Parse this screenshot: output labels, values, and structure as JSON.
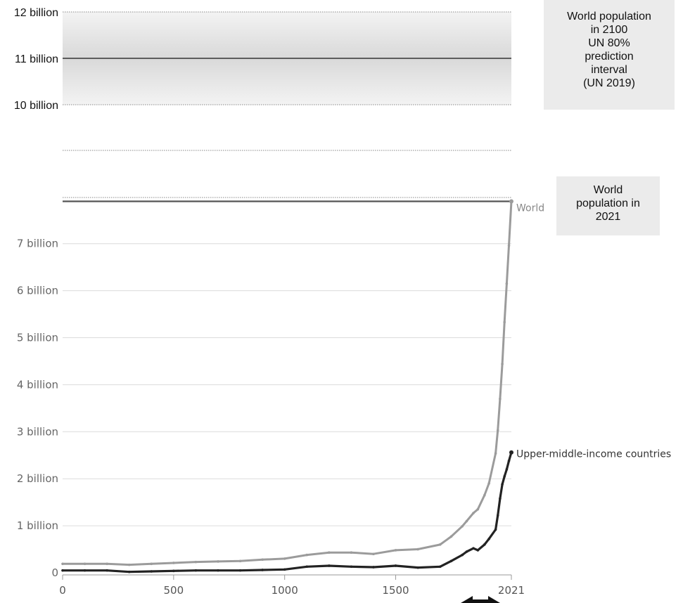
{
  "chart_data": {
    "type": "line",
    "x_ticks": [
      "0",
      "500",
      "1000",
      "1500",
      "2021"
    ],
    "x_tick_values": [
      0,
      500,
      1000,
      1500,
      2021
    ],
    "xlim": [
      0,
      2021
    ],
    "y_ticks_lower": [
      "0",
      "1 billion",
      "2 billion",
      "3 billion",
      "4 billion",
      "5 billion",
      "6 billion",
      "7 billion"
    ],
    "y_tick_values_lower": [
      0,
      1,
      2,
      3,
      4,
      5,
      6,
      7
    ],
    "y_ticks_upper": [
      "10 billion",
      "11 billion",
      "12 billion"
    ],
    "y_tick_values_upper": [
      10,
      11,
      12
    ],
    "y_unit": "billion",
    "grid": true,
    "series": [
      {
        "name": "World",
        "color": "#9b9b9b",
        "x": [
          0,
          100,
          200,
          300,
          400,
          500,
          600,
          700,
          800,
          900,
          1000,
          1100,
          1200,
          1300,
          1400,
          1500,
          1600,
          1700,
          1750,
          1800,
          1820,
          1850,
          1870,
          1900,
          1920,
          1950,
          1960,
          1970,
          1980,
          1990,
          2000,
          2010,
          2021
        ],
        "values": [
          0.19,
          0.19,
          0.19,
          0.17,
          0.19,
          0.21,
          0.23,
          0.24,
          0.25,
          0.28,
          0.3,
          0.38,
          0.43,
          0.43,
          0.4,
          0.48,
          0.5,
          0.6,
          0.77,
          0.99,
          1.1,
          1.27,
          1.35,
          1.65,
          1.9,
          2.54,
          3.03,
          3.7,
          4.44,
          5.33,
          6.15,
          6.96,
          7.9
        ]
      },
      {
        "name": "Upper-middle-income countries",
        "color": "#222222",
        "x": [
          0,
          100,
          200,
          300,
          400,
          500,
          600,
          700,
          800,
          900,
          1000,
          1100,
          1200,
          1300,
          1400,
          1500,
          1600,
          1700,
          1750,
          1800,
          1820,
          1850,
          1870,
          1900,
          1920,
          1950,
          1960,
          1970,
          1980,
          1990,
          2000,
          2010,
          2021
        ],
        "values": [
          0.05,
          0.05,
          0.05,
          0.02,
          0.03,
          0.04,
          0.05,
          0.05,
          0.05,
          0.06,
          0.07,
          0.13,
          0.15,
          0.13,
          0.12,
          0.15,
          0.11,
          0.13,
          0.25,
          0.38,
          0.45,
          0.52,
          0.48,
          0.6,
          0.72,
          0.92,
          1.22,
          1.58,
          1.88,
          2.05,
          2.2,
          2.38,
          2.56
        ]
      }
    ],
    "reference_lines": [
      {
        "label": "World population in 2021",
        "value": 7.9
      },
      {
        "label": "World population in 2100 UN 80% prediction interval (UN 2019)",
        "value": 11.0,
        "low": 10.0,
        "high": 12.0
      }
    ]
  },
  "annotations": {
    "box_2100": [
      "World population",
      "in 2100",
      "UN 80%",
      "prediction",
      "interval",
      "(UN 2019)"
    ],
    "box_2021": [
      "World",
      "population in",
      "2021"
    ]
  },
  "colors": {
    "world": "#9b9b9b",
    "upper_middle": "#222222",
    "gridline": "#dcdcdc",
    "reference": "#555555"
  }
}
